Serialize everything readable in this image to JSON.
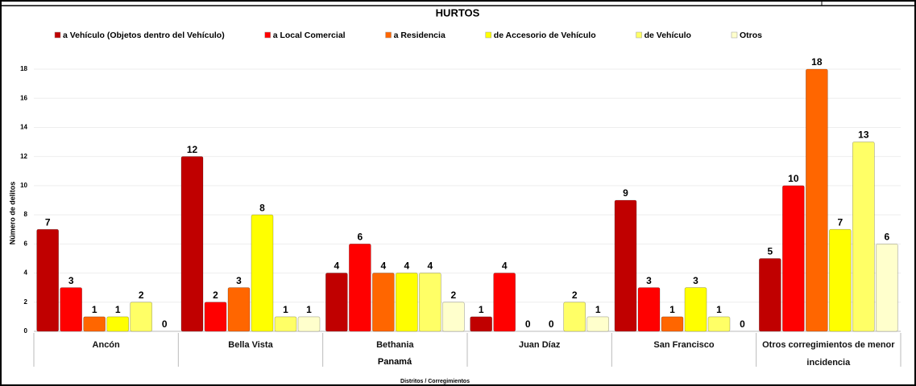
{
  "chart_data": {
    "type": "bar",
    "title": "HURTOS",
    "y_label": "Número de delitos",
    "x_label": "Distritos / Corregimientos",
    "group_label": "Panamá",
    "categories": [
      "Ancón",
      "Bella Vista",
      "Bethania",
      "Juan Díaz",
      "San Francisco",
      "Otros corregimientos de menor incidencia"
    ],
    "series": [
      {
        "name": "a Vehículo (Objetos dentro del Vehículo)",
        "color": "#c00000",
        "values": [
          7,
          12,
          4,
          1,
          9,
          5
        ]
      },
      {
        "name": "a Local Comercial",
        "color": "#ff0000",
        "values": [
          3,
          2,
          6,
          4,
          3,
          10
        ]
      },
      {
        "name": "a Residencia",
        "color": "#ff6600",
        "values": [
          1,
          3,
          4,
          0,
          1,
          18
        ]
      },
      {
        "name": "de Accesorio de Vehículo",
        "color": "#ffff00",
        "values": [
          1,
          8,
          4,
          0,
          3,
          7
        ]
      },
      {
        "name": "de Vehículo",
        "color": "#ffff66",
        "values": [
          2,
          1,
          4,
          2,
          1,
          13
        ]
      },
      {
        "name": "Otros",
        "color": "#ffffcc",
        "values": [
          0,
          1,
          2,
          1,
          0,
          6
        ]
      }
    ],
    "ylim": [
      0,
      18
    ],
    "yticks": [
      0,
      2,
      4,
      6,
      8,
      10,
      12,
      14,
      16,
      18
    ],
    "grid": true
  }
}
